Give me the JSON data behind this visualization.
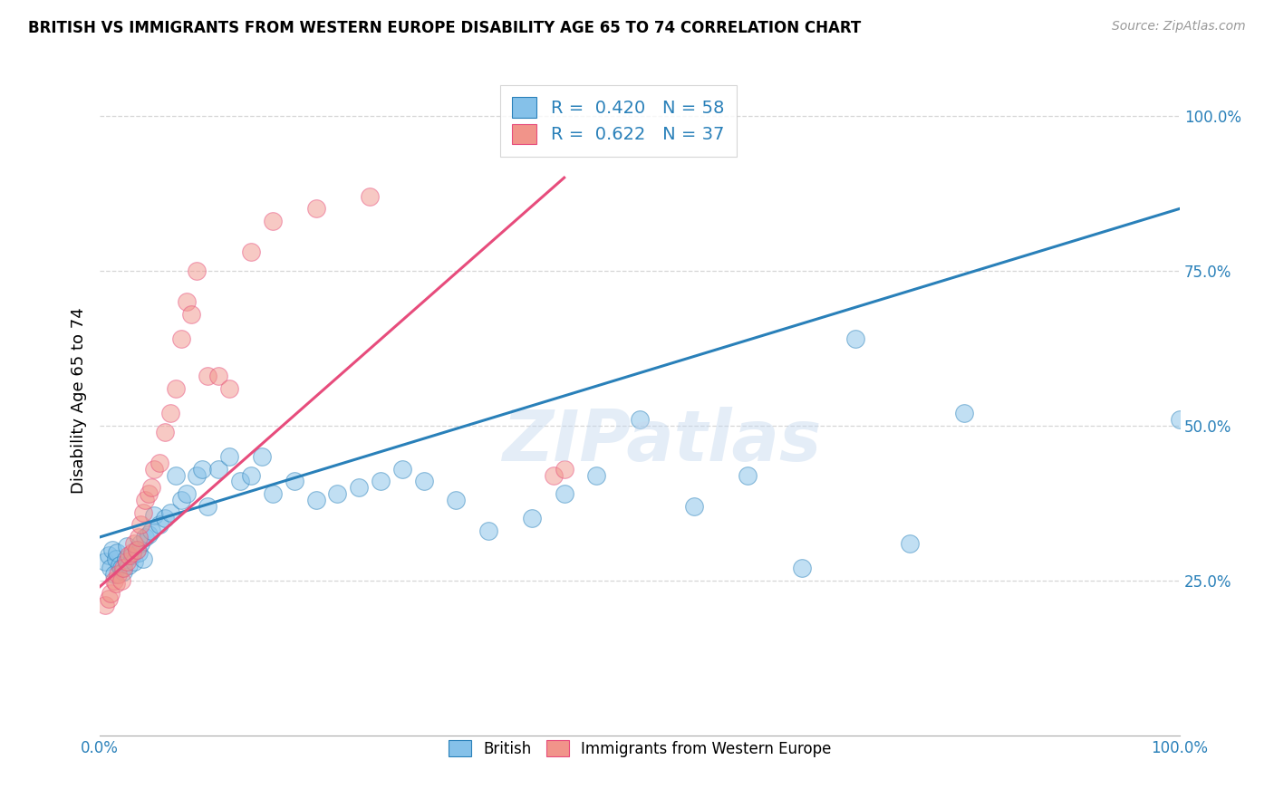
{
  "title": "BRITISH VS IMMIGRANTS FROM WESTERN EUROPE DISABILITY AGE 65 TO 74 CORRELATION CHART",
  "source": "Source: ZipAtlas.com",
  "ylabel": "Disability Age 65 to 74",
  "legend_label_1": "British",
  "legend_label_2": "Immigrants from Western Europe",
  "r1": 0.42,
  "n1": 58,
  "r2": 0.622,
  "n2": 37,
  "color_blue": "#85c1e9",
  "color_pink": "#f1948a",
  "line_color_blue": "#2980b9",
  "line_color_pink": "#e74c7c",
  "watermark": "ZIPatlas",
  "blue_x": [
    0.005,
    0.008,
    0.01,
    0.012,
    0.013,
    0.015,
    0.016,
    0.018,
    0.02,
    0.022,
    0.024,
    0.025,
    0.027,
    0.03,
    0.032,
    0.034,
    0.036,
    0.038,
    0.04,
    0.042,
    0.045,
    0.048,
    0.05,
    0.055,
    0.06,
    0.065,
    0.07,
    0.075,
    0.08,
    0.09,
    0.095,
    0.1,
    0.11,
    0.12,
    0.13,
    0.14,
    0.15,
    0.16,
    0.18,
    0.2,
    0.22,
    0.24,
    0.26,
    0.28,
    0.3,
    0.33,
    0.36,
    0.4,
    0.43,
    0.46,
    0.5,
    0.55,
    0.6,
    0.65,
    0.7,
    0.75,
    0.8,
    1.0
  ],
  "blue_y": [
    0.28,
    0.29,
    0.27,
    0.3,
    0.26,
    0.285,
    0.295,
    0.275,
    0.27,
    0.265,
    0.285,
    0.305,
    0.275,
    0.29,
    0.28,
    0.3,
    0.295,
    0.31,
    0.285,
    0.32,
    0.325,
    0.33,
    0.355,
    0.34,
    0.35,
    0.36,
    0.42,
    0.38,
    0.39,
    0.42,
    0.43,
    0.37,
    0.43,
    0.45,
    0.41,
    0.42,
    0.45,
    0.39,
    0.41,
    0.38,
    0.39,
    0.4,
    0.41,
    0.43,
    0.41,
    0.38,
    0.33,
    0.35,
    0.39,
    0.42,
    0.51,
    0.37,
    0.42,
    0.27,
    0.64,
    0.31,
    0.52,
    0.51
  ],
  "pink_x": [
    0.005,
    0.008,
    0.01,
    0.013,
    0.015,
    0.017,
    0.02,
    0.022,
    0.025,
    0.027,
    0.03,
    0.032,
    0.034,
    0.036,
    0.038,
    0.04,
    0.042,
    0.045,
    0.048,
    0.05,
    0.055,
    0.06,
    0.065,
    0.07,
    0.075,
    0.08,
    0.085,
    0.09,
    0.1,
    0.11,
    0.12,
    0.14,
    0.16,
    0.2,
    0.25,
    0.42,
    0.43
  ],
  "pink_y": [
    0.21,
    0.22,
    0.23,
    0.25,
    0.245,
    0.26,
    0.25,
    0.27,
    0.28,
    0.29,
    0.295,
    0.31,
    0.3,
    0.32,
    0.34,
    0.36,
    0.38,
    0.39,
    0.4,
    0.43,
    0.44,
    0.49,
    0.52,
    0.56,
    0.64,
    0.7,
    0.68,
    0.75,
    0.58,
    0.58,
    0.56,
    0.78,
    0.83,
    0.85,
    0.87,
    0.42,
    0.43
  ],
  "blue_line": [
    0.0,
    1.0,
    0.32,
    0.85
  ],
  "pink_line_x": [
    0.0,
    0.43
  ],
  "pink_line_y": [
    0.24,
    0.9
  ],
  "xlim": [
    0.0,
    1.0
  ],
  "ylim": [
    0.0,
    1.08
  ],
  "yticks": [
    0.25,
    0.5,
    0.75,
    1.0
  ],
  "ytick_labels": [
    "25.0%",
    "50.0%",
    "75.0%",
    "100.0%"
  ],
  "xtick_positions": [
    0.0,
    0.2,
    0.4,
    0.6,
    0.8,
    1.0
  ],
  "xtick_labels": [
    "0.0%",
    "",
    "",
    "",
    "",
    "100.0%"
  ],
  "title_fontsize": 12,
  "tick_fontsize": 12
}
